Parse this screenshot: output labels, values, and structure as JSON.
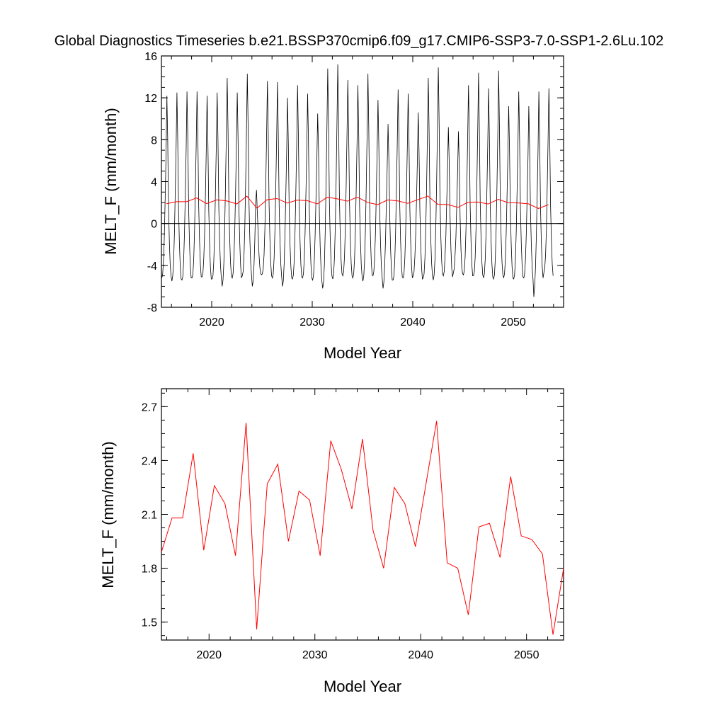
{
  "title": "Global Diagnostics Timeseries b.e21.BSSP370cmip6.f09_g17.CMIP6-SSP3-7.0-SSP1-2.6Lu.102",
  "colors": {
    "monthly_line": "#000000",
    "annual_line": "#ff0000",
    "axis": "#000000",
    "background": "#ffffff"
  },
  "chart_data": [
    {
      "type": "line",
      "xlabel": "Model Year",
      "ylabel": "MELT_F (mm/month)",
      "xlim": [
        2015,
        2055
      ],
      "ylim": [
        -8,
        16
      ],
      "x_ticks": [
        2020,
        2030,
        2040,
        2050
      ],
      "x_tick_labels": [
        "2020",
        "2030",
        "2040",
        "2050"
      ],
      "y_ticks": [
        -8,
        -4,
        0,
        4,
        8,
        12,
        16
      ],
      "y_tick_labels": [
        "-8",
        "-4",
        "0",
        "4",
        "8",
        "12",
        "16"
      ],
      "zero_line": true,
      "grid": false,
      "series": [
        {
          "key": "monthly",
          "start_year": 2015,
          "values_per_year": 12,
          "values": [
            -5.2,
            -4.8,
            -3.5,
            -1.2,
            2.5,
            6.5,
            12.2,
            8.0,
            1.5,
            -1.8,
            -4.0,
            -5.0,
            -5.5,
            -5.0,
            -3.8,
            -1.0,
            3.0,
            7.2,
            12.5,
            7.8,
            1.2,
            -2.0,
            -4.2,
            -5.3,
            -5.4,
            -5.1,
            -3.6,
            -1.0,
            2.8,
            7.0,
            12.6,
            8.1,
            1.4,
            -1.9,
            -4.1,
            -5.2,
            -5.2,
            -4.9,
            -3.5,
            -0.8,
            3.2,
            7.5,
            12.6,
            8.3,
            1.6,
            -1.7,
            -3.9,
            -5.1,
            -5.1,
            -4.8,
            -3.4,
            -1.1,
            2.6,
            6.9,
            12.2,
            7.6,
            1.3,
            -2.0,
            -4.2,
            -5.3,
            -5.3,
            -5.0,
            -3.6,
            -0.9,
            3.1,
            7.4,
            12.5,
            8.0,
            1.5,
            -1.8,
            -4.0,
            -5.2,
            -6.0,
            -5.4,
            -3.8,
            -0.5,
            3.8,
            8.5,
            13.9,
            9.0,
            2.0,
            -1.5,
            -3.8,
            -5.0,
            -5.2,
            -4.8,
            -3.3,
            -0.8,
            3.0,
            7.3,
            12.5,
            8.0,
            1.5,
            -1.8,
            -4.0,
            -5.2,
            -5.0,
            -4.6,
            -3.2,
            -0.5,
            3.8,
            8.8,
            14.3,
            9.2,
            2.1,
            -1.4,
            -3.7,
            -4.9,
            -6.0,
            -5.5,
            -4.0,
            -1.5,
            2.0,
            3.2,
            1.0,
            -1.0,
            -3.0,
            -4.2,
            -4.8,
            -4.9,
            -4.8,
            -4.3,
            -3.0,
            -0.5,
            3.5,
            8.2,
            13.6,
            8.6,
            1.8,
            -1.5,
            -3.8,
            -5.0,
            -5.2,
            -4.8,
            -3.3,
            -0.6,
            3.5,
            8.0,
            13.5,
            8.5,
            1.8,
            -1.6,
            -3.9,
            -5.1,
            -6.0,
            -5.5,
            -3.8,
            -1.0,
            2.9,
            7.0,
            12.0,
            7.5,
            1.3,
            -2.0,
            -4.1,
            -5.2,
            -5.3,
            -4.9,
            -3.5,
            -0.7,
            3.3,
            7.8,
            13.2,
            8.2,
            1.6,
            -1.8,
            -4.0,
            -5.1,
            -5.2,
            -4.8,
            -3.4,
            -0.8,
            3.0,
            7.2,
            12.4,
            7.9,
            1.5,
            -1.8,
            -4.0,
            -5.2,
            -5.4,
            -5.0,
            -3.5,
            -1.0,
            2.5,
            6.0,
            10.5,
            7.0,
            1.0,
            -2.2,
            -4.3,
            -5.5,
            -6.2,
            -5.6,
            -4.0,
            -0.8,
            3.8,
            9.0,
            14.8,
            9.2,
            2.0,
            -1.5,
            -3.8,
            -5.0,
            -5.3,
            -4.9,
            -3.3,
            -0.4,
            4.0,
            9.5,
            15.2,
            9.5,
            2.2,
            -1.3,
            -3.6,
            -4.8,
            -5.0,
            -4.6,
            -3.2,
            -0.5,
            3.6,
            8.5,
            13.7,
            8.6,
            1.9,
            -1.5,
            -3.8,
            -5.0,
            -5.2,
            -4.8,
            -3.4,
            -0.7,
            3.3,
            7.8,
            13.2,
            8.4,
            1.7,
            -1.6,
            -3.9,
            -5.1,
            -5.5,
            -5.0,
            -3.5,
            -0.6,
            3.7,
            8.6,
            14.3,
            9.0,
            2.0,
            -1.4,
            -3.7,
            -4.9,
            -5.0,
            -4.6,
            -3.3,
            -0.9,
            3.0,
            7.0,
            11.8,
            7.4,
            1.4,
            -1.9,
            -4.1,
            -5.2,
            -6.2,
            -5.6,
            -4.0,
            -1.5,
            2.0,
            5.5,
            9.5,
            6.0,
            0.8,
            -2.4,
            -4.4,
            -5.4,
            -5.4,
            -5.0,
            -3.6,
            -0.8,
            3.2,
            7.6,
            12.8,
            8.1,
            1.6,
            -1.8,
            -4.0,
            -5.1,
            -5.2,
            -4.8,
            -3.4,
            -0.8,
            3.0,
            7.3,
            12.4,
            7.9,
            1.5,
            -1.8,
            -4.0,
            -5.2,
            -5.0,
            -4.6,
            -3.2,
            -1.0,
            2.4,
            6.0,
            10.6,
            6.8,
            1.2,
            -2.1,
            -4.2,
            -5.3,
            -5.2,
            -4.8,
            -3.3,
            -0.6,
            3.6,
            8.4,
            13.9,
            8.8,
            1.9,
            -1.5,
            -3.8,
            -5.0,
            -5.4,
            -4.9,
            -3.4,
            -0.4,
            4.0,
            9.4,
            14.9,
            9.4,
            2.2,
            -1.3,
            -3.6,
            -4.8,
            -5.0,
            -4.6,
            -3.2,
            -1.2,
            2.0,
            5.2,
            9.2,
            5.8,
            0.8,
            -2.3,
            -4.3,
            -5.1,
            -4.7,
            -4.3,
            -3.0,
            -1.3,
            1.8,
            4.8,
            8.8,
            5.6,
            0.6,
            -2.4,
            -4.2,
            -4.8,
            -4.9,
            -4.5,
            -3.2,
            -0.6,
            3.4,
            8.0,
            13.2,
            8.3,
            1.7,
            -1.6,
            -3.9,
            -5.0,
            -5.0,
            -4.6,
            -3.2,
            -0.5,
            3.7,
            8.7,
            14.4,
            9.0,
            2.0,
            -1.4,
            -3.7,
            -4.9,
            -5.2,
            -4.8,
            -3.4,
            -0.8,
            3.2,
            7.6,
            12.9,
            8.1,
            1.6,
            -1.7,
            -3.9,
            -5.1,
            -5.3,
            -4.9,
            -3.4,
            -0.6,
            3.6,
            8.5,
            14.6,
            9.0,
            2.0,
            -1.4,
            -3.7,
            -4.9,
            -5.2,
            -4.8,
            -3.5,
            -1.0,
            2.6,
            6.4,
            11.2,
            7.0,
            1.2,
            -2.0,
            -4.1,
            -5.2,
            -5.3,
            -4.9,
            -3.5,
            -0.8,
            3.1,
            7.2,
            12.6,
            8.0,
            1.5,
            -1.8,
            -4.0,
            -5.1,
            -5.2,
            -4.8,
            -3.5,
            -1.0,
            2.5,
            6.2,
            11.2,
            7.0,
            1.2,
            -2.0,
            -4.2,
            -5.3,
            -7.0,
            -6.0,
            -4.2,
            -1.2,
            2.8,
            6.9,
            12.6,
            7.8,
            1.4,
            -1.9,
            -4.1,
            -5.2,
            -4.7,
            -4.3,
            -3.0,
            -0.6,
            3.5,
            8.0,
            12.9,
            8.0,
            1.6,
            -1.7,
            -3.9,
            -5.0
          ]
        },
        {
          "key": "annual",
          "x": [
            2015.5,
            2016.5,
            2017.5,
            2018.5,
            2019.5,
            2020.5,
            2021.5,
            2022.5,
            2023.5,
            2024.5,
            2025.5,
            2026.5,
            2027.5,
            2028.5,
            2029.5,
            2030.5,
            2031.5,
            2032.5,
            2033.5,
            2034.5,
            2035.5,
            2036.5,
            2037.5,
            2038.5,
            2039.5,
            2040.5,
            2041.5,
            2042.5,
            2043.5,
            2044.5,
            2045.5,
            2046.5,
            2047.5,
            2048.5,
            2049.5,
            2050.5,
            2051.5,
            2052.5,
            2053.5
          ],
          "values": [
            1.89,
            2.08,
            2.08,
            2.44,
            1.9,
            2.26,
            2.16,
            1.87,
            2.61,
            1.46,
            2.27,
            2.38,
            1.95,
            2.23,
            2.18,
            1.87,
            2.51,
            2.35,
            2.13,
            2.52,
            2.01,
            1.8,
            2.25,
            2.16,
            1.92,
            2.27,
            2.62,
            1.83,
            1.8,
            1.54,
            2.03,
            2.05,
            1.86,
            2.31,
            1.98,
            1.96,
            1.88,
            1.43,
            1.8
          ]
        }
      ]
    },
    {
      "type": "line",
      "xlabel": "Model Year",
      "ylabel": "MELT_F (mm/month)",
      "xlim": [
        2015.5,
        2053.5
      ],
      "ylim": [
        1.4,
        2.8
      ],
      "x_ticks": [
        2020,
        2030,
        2040,
        2050
      ],
      "x_tick_labels": [
        "2020",
        "2030",
        "2040",
        "2050"
      ],
      "y_ticks": [
        1.5,
        1.8,
        2.1,
        2.4,
        2.7
      ],
      "y_tick_labels": [
        "1.5",
        "1.8",
        "2.1",
        "2.4",
        "2.7"
      ],
      "grid": false,
      "series": [
        {
          "key": "annual",
          "x": [
            2015.5,
            2016.5,
            2017.5,
            2018.5,
            2019.5,
            2020.5,
            2021.5,
            2022.5,
            2023.5,
            2024.5,
            2025.5,
            2026.5,
            2027.5,
            2028.5,
            2029.5,
            2030.5,
            2031.5,
            2032.5,
            2033.5,
            2034.5,
            2035.5,
            2036.5,
            2037.5,
            2038.5,
            2039.5,
            2040.5,
            2041.5,
            2042.5,
            2043.5,
            2044.5,
            2045.5,
            2046.5,
            2047.5,
            2048.5,
            2049.5,
            2050.5,
            2051.5,
            2052.5,
            2053.5
          ],
          "values": [
            1.89,
            2.08,
            2.08,
            2.44,
            1.9,
            2.26,
            2.16,
            1.87,
            2.61,
            1.46,
            2.27,
            2.38,
            1.95,
            2.23,
            2.18,
            1.87,
            2.51,
            2.35,
            2.13,
            2.52,
            2.01,
            1.8,
            2.25,
            2.16,
            1.92,
            2.27,
            2.62,
            1.83,
            1.8,
            1.54,
            2.03,
            2.05,
            1.86,
            2.31,
            1.98,
            1.96,
            1.88,
            1.43,
            1.8
          ]
        }
      ]
    }
  ]
}
